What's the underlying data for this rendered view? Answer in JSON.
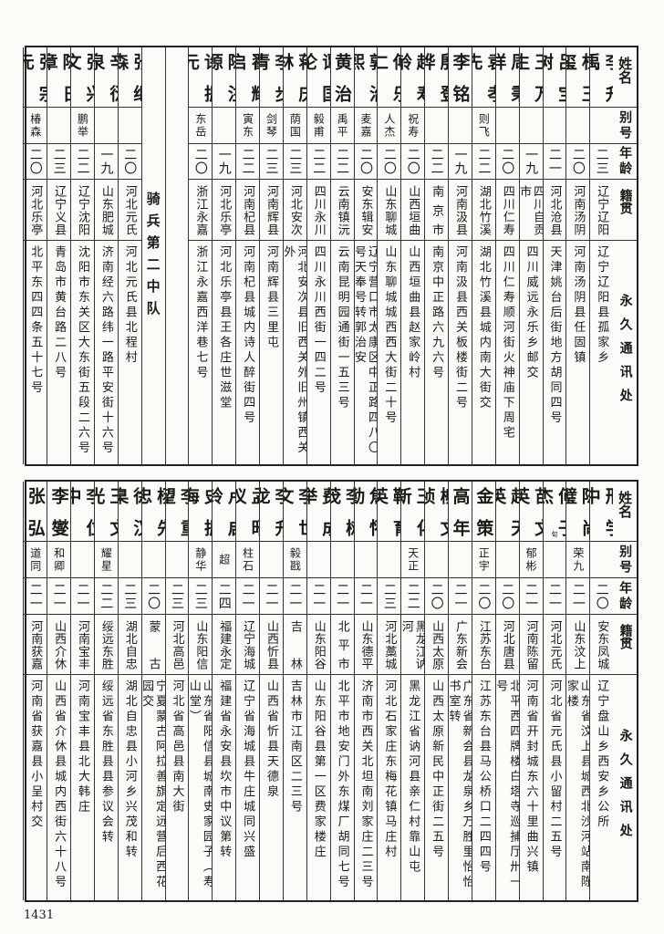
{
  "header": {
    "name": "姓名",
    "alias": "别号",
    "age": "年龄",
    "native": "籍贯",
    "address": "永久通讯处"
  },
  "section_label": "骑兵第二中队",
  "top_rows_right_to_left": [
    {
      "name": "李升禹",
      "alias": "",
      "age": "二三",
      "native": "辽宁辽阳",
      "address": "辽宁辽阳县孤家乡"
    },
    {
      "name": "杜玉玺",
      "alias": "",
      "age": "二〇",
      "native": "河南汤阴",
      "address": "河南汤阴县任固镇"
    },
    {
      "name": "吕宝树",
      "alias": "",
      "age": "二一",
      "native": "河北沧县",
      "address": "天津姚台后街地方胡同四号"
    },
    {
      "name": "王万生",
      "alias": "",
      "age": "一九",
      "native": "四川自贡市",
      "address": "四川威远永乐乡邮交"
    },
    {
      "name": "周秉祥",
      "alias": "",
      "age": "二〇",
      "native": "四川仁寿",
      "address": "四川仁寿顺河街火神庙下周宅"
    },
    {
      "name": "袁孝先",
      "alias": "则飞",
      "age": "二二",
      "native": "湖北竹溪",
      "address": "湖北竹溪县城内南大街交"
    },
    {
      "name": "李铭",
      "alias": "",
      "age": "一九",
      "native": "河南汲县",
      "address": "河南汲县西关板楼街二号"
    },
    {
      "name": "殷登骅",
      "alias": "",
      "age": "二二",
      "native": "南京市",
      "address": "南京中正路六九六号"
    },
    {
      "name": "赵寿龄",
      "alias": "祝寿",
      "age": "二〇",
      "native": "山西垣曲",
      "address": "山西垣曲县赵家岭村"
    },
    {
      "name": "傅乐仁",
      "alias": "人杰",
      "age": "二〇",
      "native": "山东聊城",
      "address": "山东聊城城西西大街二十号"
    },
    {
      "name": "郭治熙",
      "alias": "麦嘉",
      "age": "二〇",
      "native": "安东辑安",
      "address": "辽宁营口市太康区中正路四八〇号天奉号转郭治安"
    },
    {
      "name": "黄治",
      "alias": "禹平",
      "age": "二二",
      "native": "云南镇沅",
      "address": "云南昆明园通街一五三号"
    },
    {
      "name": "谭国伦",
      "alias": "毅甫",
      "age": "二二",
      "native": "四川永川",
      "address": "四川永川西街一四二号"
    },
    {
      "name": "蒋庆林",
      "alias": "荫国",
      "age": "二三",
      "native": "河北安次",
      "address": "河北安次县旧西关外旧州镇西关外"
    },
    {
      "name": "李步青",
      "alias": "剑琴",
      "age": "二三",
      "native": "河南辉县",
      "address": "河南辉县三里屯"
    },
    {
      "name": "翟耀启",
      "alias": "寅东",
      "age": "二二",
      "native": "河南杞县",
      "address": "河南杞县城内诗人醉街四号"
    },
    {
      "name": "陈注源",
      "alias": "",
      "age": "一九",
      "native": "河北乐亭",
      "address": "河北乐亭县王各庄世滋堂"
    },
    {
      "name": "许振元",
      "alias": "东岳",
      "age": "二〇",
      "native": "浙江永嘉",
      "address": "浙江永嘉西洋巷七号"
    }
  ],
  "top_section_rows_right_to_left": [
    {
      "name": "张继森",
      "alias": "",
      "age": "二〇",
      "native": "河北元氏",
      "address": "河北元氏县北程村"
    },
    {
      "name": "辛衍泉",
      "alias": "",
      "age": "一九",
      "native": "山东肥城",
      "address": "济南经六路纬一路平安街十六号"
    },
    {
      "name": "张兴文",
      "alias": "鹏举",
      "age": "二二",
      "native": "辽宁沈阳",
      "address": "沈阳市东关区大东街五段二六号"
    },
    {
      "name": "陈日章",
      "alias": "",
      "age": "二三",
      "native": "辽宁义县",
      "address": "青岛市黄台路二八号"
    },
    {
      "name": "张宗元",
      "alias": "椿森",
      "age": "二〇",
      "native": "河北乐亭",
      "address": "北平东四四条五十七号"
    }
  ],
  "bottom_rows_right_to_left": [
    {
      "name": "邢学中",
      "alias": "",
      "age": "二〇",
      "native": "安东凤城",
      "address": "辽宁盘山乡西安乡公所"
    },
    {
      "name": "陈尚璧",
      "alias": "荣九",
      "age": "二一",
      "native": "山东汶上",
      "address": "山东省汶上县城西北沙河站南陈家楼"
    },
    {
      "name": "何子杰",
      "name_note": "旬",
      "alias": "",
      "age": "二一",
      "native": "河北元氏",
      "address": "河北省元氏县小留村二五号"
    },
    {
      "name": "苗文英",
      "alias": "郁彬",
      "age": "二一",
      "native": "河南陈留",
      "address": "河南省开封城东六十里曲兴镇"
    },
    {
      "name": "赵天英",
      "alias": "",
      "age": "二〇",
      "native": "河北唐县",
      "address": "北平西四牌楼白塔寺巡捕厅卅一号"
    },
    {
      "name": "金策",
      "alias": "正宇",
      "age": "二〇",
      "native": "江苏东台",
      "address": "江苏东台县马公桥口二四四号"
    },
    {
      "name": "高年",
      "alias": "",
      "age": "二一",
      "native": "广东新会",
      "address": "广东省新会县龙泉乡万胜里怡怡书室转"
    },
    {
      "name": "柳文祯",
      "alias": "",
      "age": "二〇",
      "native": "山西太原",
      "address": "山西太原新民中正街二五号"
    },
    {
      "name": "王化新",
      "alias": "天正",
      "age": "二二",
      "native": "黑龙江讷河",
      "address": "黑龙江省讷河县亲仁村靠山屯"
    },
    {
      "name": "靳育英",
      "alias": "",
      "age": "二三",
      "native": "河北藁城",
      "address": "河北石家庄东梅花镇马庄村"
    },
    {
      "name": "焦怀勤",
      "alias": "",
      "age": "二一",
      "native": "山东德平",
      "address": "济南市西关北坦南刘家庄二三号"
    },
    {
      "name": "李树茂",
      "alias": "",
      "age": "二一",
      "native": "北平市",
      "address": "北平市地安门外东煤厂胡同七号"
    },
    {
      "name": "费成举",
      "alias": "",
      "age": "二一",
      "native": "山东阳谷",
      "address": "山东阳谷县第一区费家楼庄"
    },
    {
      "name": "李世文",
      "alias": "毅戡",
      "age": "二一",
      "native": "吉林",
      "address": "吉林市江南区二三号"
    },
    {
      "name": "李升龙",
      "alias": "",
      "age": "二一",
      "native": "山西忻县",
      "address": "山西省忻县天德泉"
    },
    {
      "name": "孟昭仪",
      "alias": "柱石",
      "age": "二一",
      "native": "辽宁海城",
      "address": "辽宁省海城县牛庄城同兴盛"
    },
    {
      "name": "卢启铃",
      "alias": "超",
      "age": "二四",
      "native": "福建永定",
      "address": "福建省永安县坎市中议第转"
    },
    {
      "name": "史振海",
      "alias": "静华",
      "age": "二三",
      "native": "山东阳信",
      "address": "山东省阳信县城南史家园子（寿山堂）"
    },
    {
      "name": "李重望",
      "alias": "",
      "age": "二三",
      "native": "河北高邑",
      "address": "河北省高邑县南大街"
    },
    {
      "name": "杨先忠",
      "alias": "",
      "age": "二〇",
      "native": "蒙古",
      "address": "宁夏蒙古阿拉善旗定远营后西花园交"
    },
    {
      "name": "徐汉臬",
      "alias": "",
      "age": "二三",
      "native": "湖北自忠",
      "address": "湖北自忠县小河乡兴茂和转"
    },
    {
      "name": "王文光",
      "alias": "耀星",
      "age": "二二",
      "native": "绥远东胜",
      "address": "绥远省东胜县县参议会转"
    },
    {
      "name": "李位中",
      "alias": "",
      "age": "二一",
      "native": "河南宝丰",
      "address": "河南宝丰县北大韩庄"
    },
    {
      "name": "李燮",
      "alias": "和卿",
      "age": "二一",
      "native": "山西介休",
      "address": "山西省介休县城内西街六十八号"
    },
    {
      "name": "张弘",
      "alias": "道同",
      "age": "二一",
      "native": "河南获嘉",
      "address": "河南省获嘉县小呈村交"
    }
  ],
  "page_number": "1431"
}
